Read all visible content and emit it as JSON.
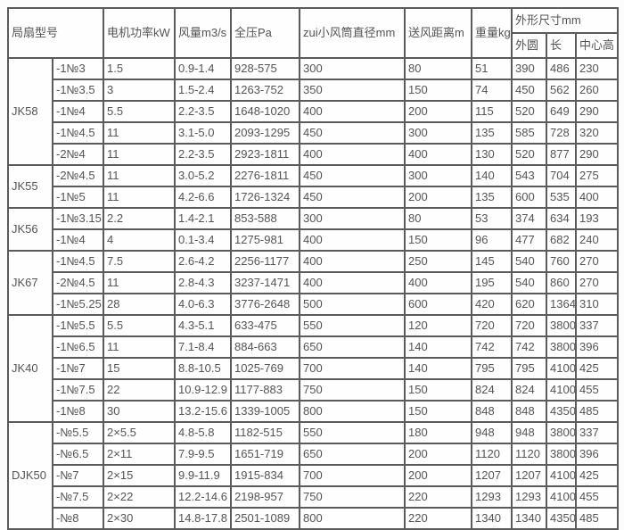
{
  "page": {
    "background_color": "#fcfcfc",
    "table_border_color": "#5b5b5b",
    "table_text_color": "#545454"
  },
  "table": {
    "header": {
      "model_group": "局扇型号",
      "motor_power": "电机功率kW",
      "air_volume": "风量m3/s",
      "total_pressure": "全压Pa",
      "min_duct_diameter": "zui小风筒直径mm",
      "air_supply_distance": "送风距离m",
      "weight": "重量kg",
      "dimensions": "外形尺寸mm",
      "dim_outer": "外圆",
      "dim_length": "长",
      "dim_center_height": "中心高"
    },
    "groups": [
      {
        "model": "JK58",
        "rows": [
          [
            "-1№3",
            "1.5",
            "0.9-1.4",
            "928-575",
            "300",
            "80",
            "51",
            "390",
            "486",
            "230"
          ],
          [
            "-1№3.5",
            "3",
            "1.5-2.4",
            "1263-752",
            "350",
            "150",
            "74",
            "450",
            "562",
            "260"
          ],
          [
            "-1№4",
            "5.5",
            "2.2-3.5",
            "1648-1020",
            "400",
            "200",
            "115",
            "520",
            "649",
            "290"
          ],
          [
            "-1№4.5",
            "11",
            "3.1-5.0",
            "2093-1295",
            "450",
            "300",
            "135",
            "585",
            "728",
            "320"
          ],
          [
            "-2№4",
            "11",
            "2.2-3.5",
            "2923-1811",
            "400",
            "400",
            "130",
            "520",
            "877",
            "290"
          ]
        ]
      },
      {
        "model": "JK55",
        "rows": [
          [
            "-2№4.5",
            "11",
            "3.0-5.2",
            "2276-1811",
            "450",
            "300",
            "140",
            "543",
            "704",
            "275"
          ],
          [
            "-1№5",
            "11",
            "4.2-6.6",
            "1726-1324",
            "450",
            "200",
            "135",
            "600",
            "535",
            "400"
          ]
        ]
      },
      {
        "model": "JK56",
        "rows": [
          [
            "-1№3.15",
            "2.2",
            "1.4-2.1",
            "853-588",
            "300",
            "80",
            "53",
            "374",
            "634",
            "193"
          ],
          [
            "-1№4",
            "4",
            "0.1-3.4",
            "1275-981",
            "400",
            "150",
            "96",
            "477",
            "682",
            "240"
          ]
        ]
      },
      {
        "model": "JK67",
        "rows": [
          [
            "-1№4.5",
            "7.5",
            "2.6-4.2",
            "2256-1177",
            "400",
            "250",
            "145",
            "540",
            "760",
            "270"
          ],
          [
            "-2№4.5",
            "11",
            "2.8-4.3",
            "3237-1471",
            "400",
            "400",
            "195",
            "540",
            "860",
            "270"
          ],
          [
            "-1№5.25",
            "28",
            "4.0-6.3",
            "3776-2648",
            "500",
            "600",
            "420",
            "620",
            "1364",
            "310"
          ]
        ]
      },
      {
        "model": "JK40",
        "rows": [
          [
            "-1№5.5",
            "5.5",
            "4.3-5.1",
            "633-475",
            "550",
            "120",
            "720",
            "720",
            "3800",
            "337"
          ],
          [
            "-1№6.5",
            "11",
            "7.1-8.4",
            "884-663",
            "650",
            "140",
            "742",
            "742",
            "3800",
            "396"
          ],
          [
            "-1№7",
            "15",
            "8.8-10.5",
            "1025-769",
            "700",
            "140",
            "795",
            "795",
            "4100",
            "425"
          ],
          [
            "-1№7.5",
            "22",
            "10.9-12.9",
            "1177-883",
            "750",
            "150",
            "824",
            "824",
            "4100",
            "455"
          ],
          [
            "-1№8",
            "30",
            "13.2-15.6",
            "1339-1005",
            "800",
            "150",
            "848",
            "848",
            "4350",
            "485"
          ]
        ]
      },
      {
        "model": "DJK50",
        "rows": [
          [
            "-№5.5",
            "2×5.5",
            "4.8-5.8",
            "1182-515",
            "550",
            "180",
            "948",
            "948",
            "3800",
            "337"
          ],
          [
            "-№6.5",
            "2×11",
            "7.9-9.5",
            "1651-719",
            "650",
            "200",
            "1120",
            "1120",
            "3800",
            "396"
          ],
          [
            "-№7",
            "2×15",
            "9.9-11.9",
            "1915-834",
            "700",
            "200",
            "1207",
            "1207",
            "4100",
            "425"
          ],
          [
            "-№7.5",
            "2×22",
            "12.2-14.6",
            "2198-957",
            "750",
            "220",
            "1293",
            "1293",
            "4100",
            "455"
          ],
          [
            "-№8",
            "2×30",
            "14.8-17.8",
            "2501-1089",
            "800",
            "220",
            "1340",
            "1340",
            "4350",
            "485"
          ]
        ]
      }
    ]
  }
}
